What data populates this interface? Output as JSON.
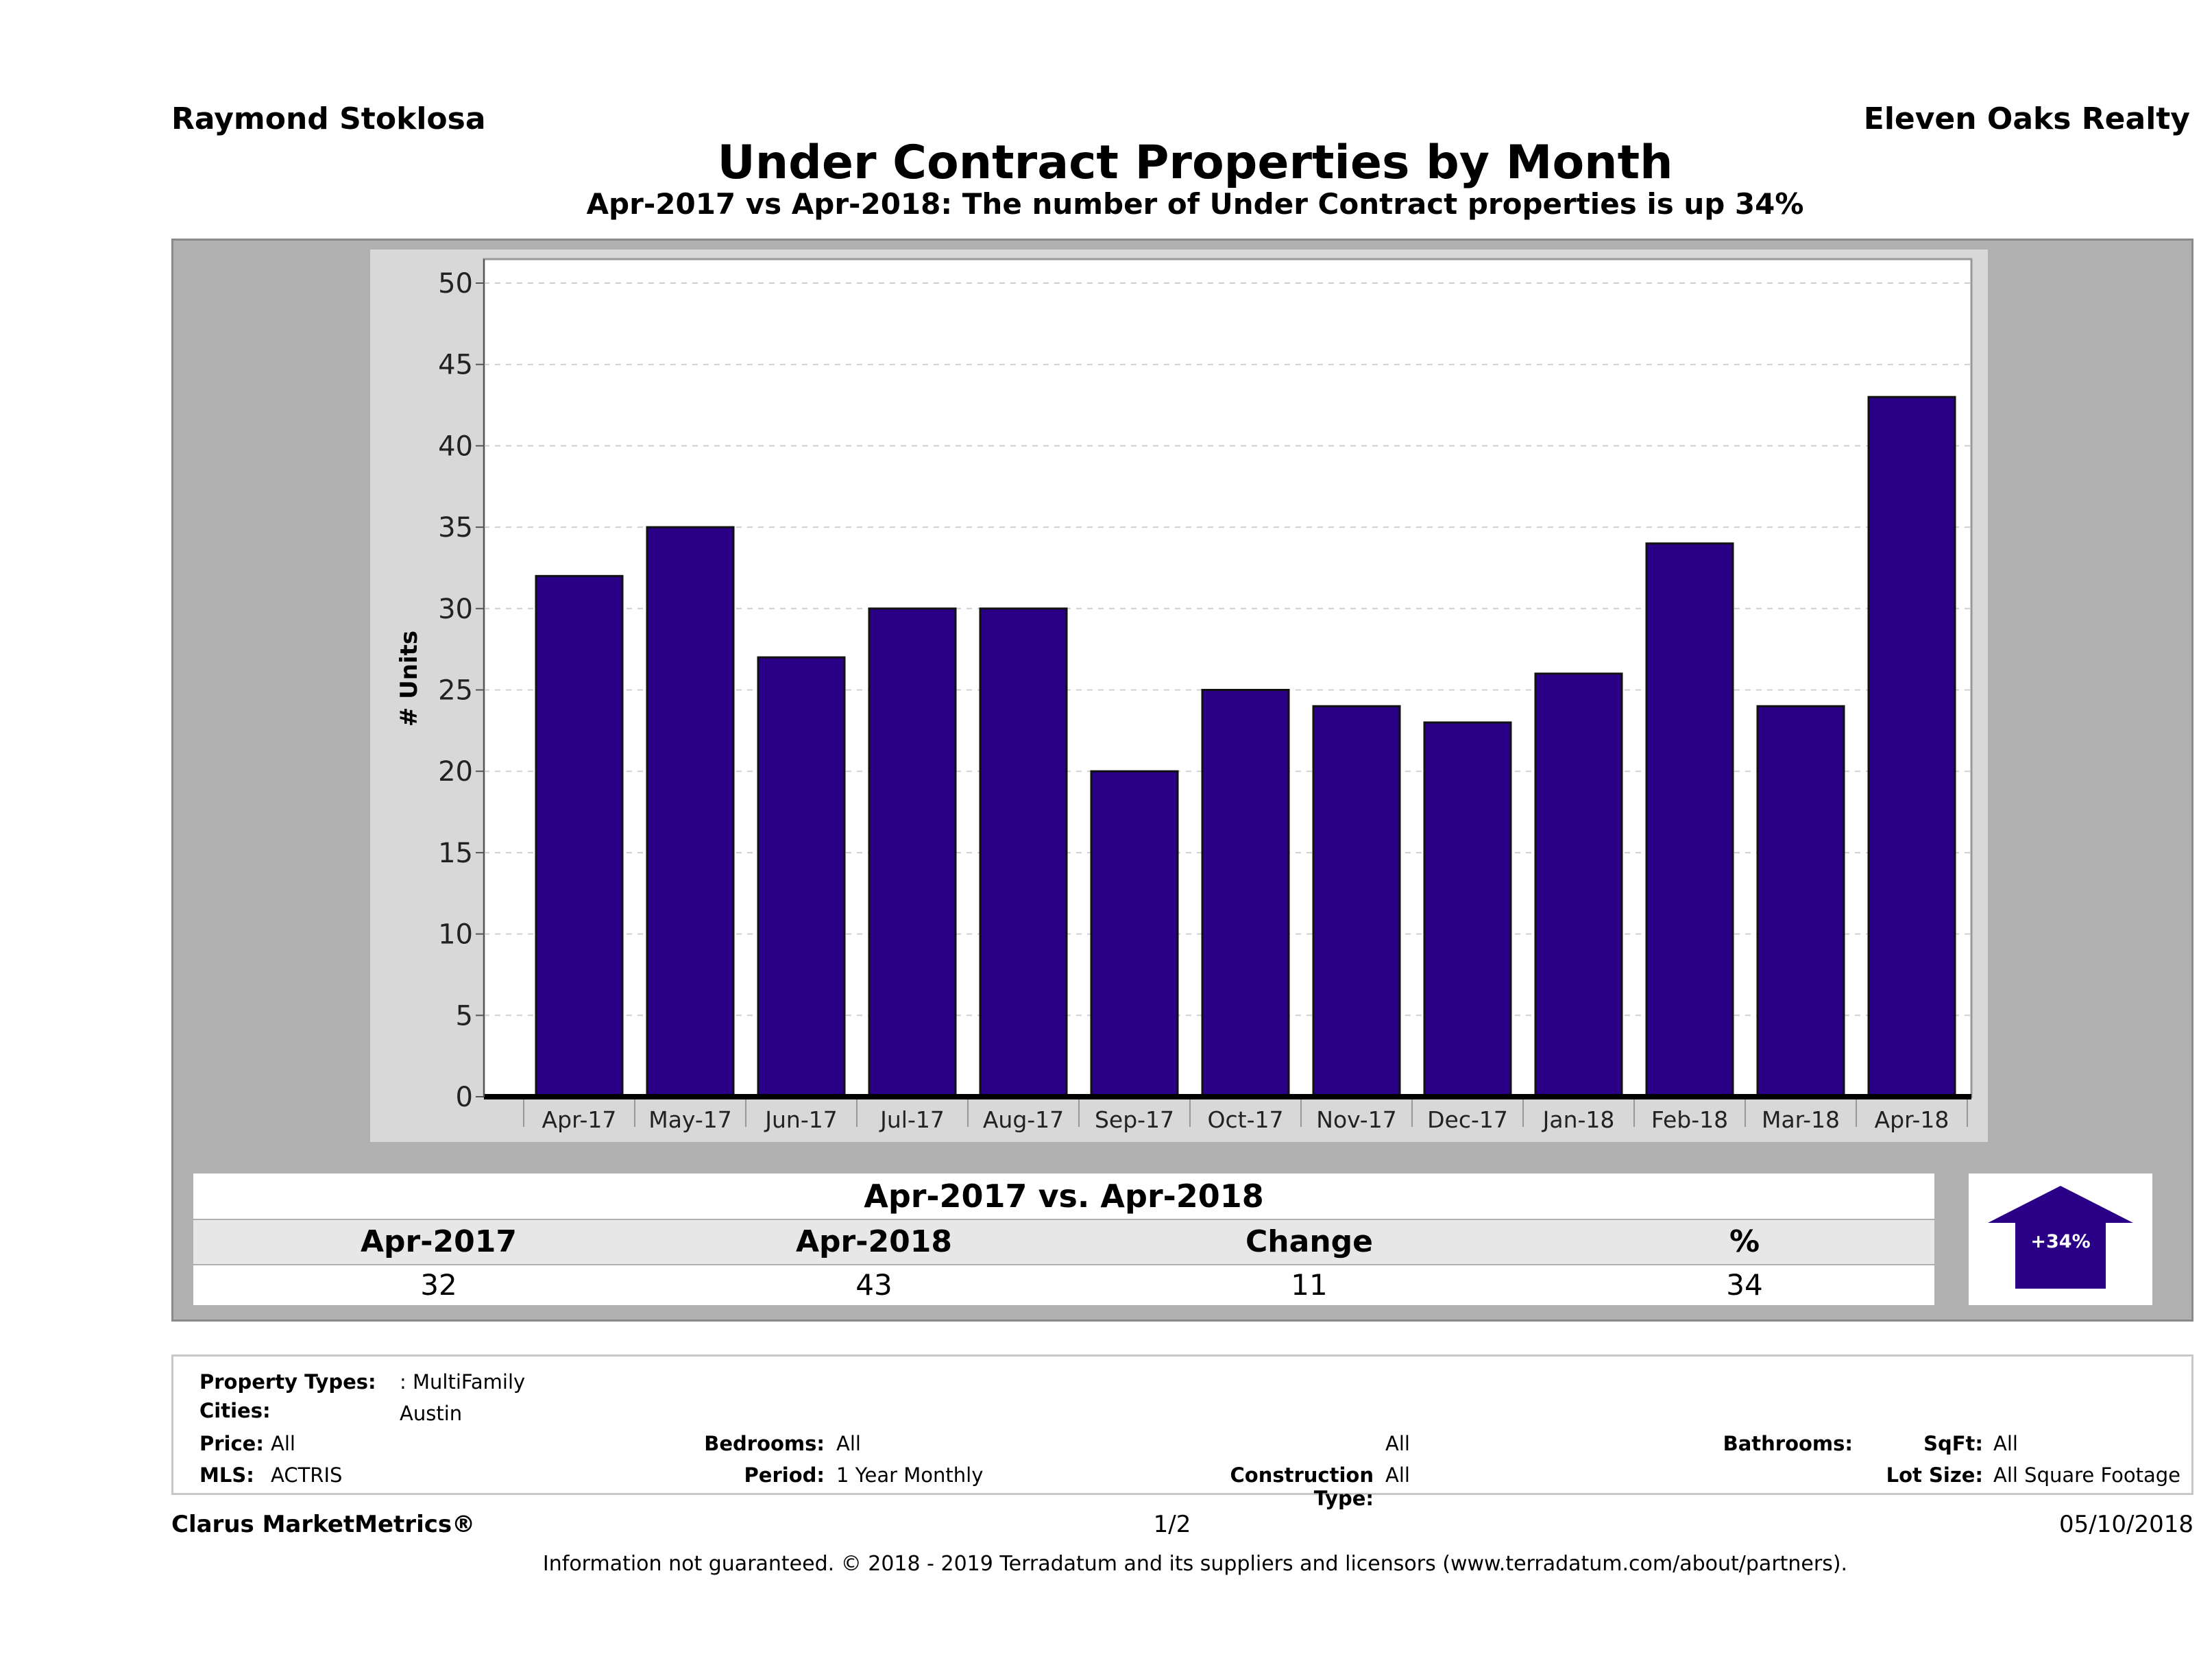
{
  "header": {
    "agent": "Raymond Stoklosa",
    "company": "Eleven Oaks Realty",
    "title": "Under Contract Properties by Month",
    "subtitle": "Apr-2017 vs Apr-2018: The number of Under Contract  properties is up 34%"
  },
  "chart_data": {
    "type": "bar",
    "categories": [
      "Apr-17",
      "May-17",
      "Jun-17",
      "Jul-17",
      "Aug-17",
      "Sep-17",
      "Oct-17",
      "Nov-17",
      "Dec-17",
      "Jan-18",
      "Feb-18",
      "Mar-18",
      "Apr-18"
    ],
    "values": [
      32,
      35,
      27,
      30,
      30,
      20,
      25,
      24,
      23,
      26,
      34,
      24,
      43
    ],
    "ylabel": "# Units",
    "xlabel": "",
    "ylim": [
      0,
      50
    ],
    "yticks": [
      0,
      5,
      10,
      15,
      20,
      25,
      30,
      35,
      40,
      45,
      50
    ],
    "grid": true,
    "bar_color": "#2a0087"
  },
  "summary": {
    "heading": "Apr-2017 vs. Apr-2018",
    "labels": [
      "Apr-2017",
      "Apr-2018",
      "Change",
      "%"
    ],
    "values": [
      "32",
      "43",
      "11",
      "34"
    ],
    "arrow_label": "+34%",
    "arrow_color": "#2a0087"
  },
  "filters": {
    "property_types_label": "Property Types:",
    "property_types_value": ": MultiFamily",
    "cities_label": "Cities:",
    "cities_value": "Austin",
    "price_label": "Price:",
    "price_value": "All",
    "mls_label": "MLS:",
    "mls_value": "ACTRIS",
    "bedrooms_label": "Bedrooms:",
    "bedrooms_value": "All",
    "period_label": "Period:",
    "period_value": "1 Year Monthly",
    "bathrooms_label": "Bathrooms:",
    "bathrooms_value": "All",
    "construction_label": "Construction Type:",
    "construction_value": "All",
    "sqft_label": "SqFt:",
    "sqft_value": "All",
    "lotsize_label": "Lot Size:",
    "lotsize_value": "All Square Footage"
  },
  "footer": {
    "brand": "Clarus MarketMetrics®",
    "page": "1/2",
    "date": "05/10/2018",
    "disclaimer": "Information not guaranteed. © 2018 - 2019 Terradatum and its suppliers and licensors (www.terradatum.com/about/partners)."
  }
}
